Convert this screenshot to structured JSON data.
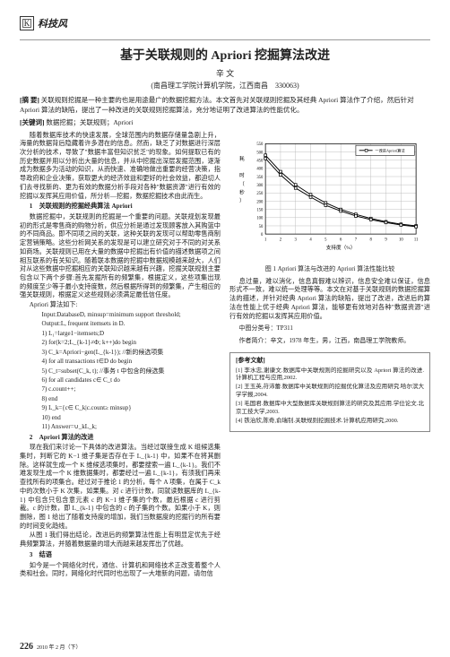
{
  "header": {
    "section": "科技风"
  },
  "title": "基于关联规则的 Apriori 挖掘算法改进",
  "author": "辛 文",
  "affiliation": "(南昌理工学院计算机学院，江西南昌　330063)",
  "abstract": {
    "label": "[摘 要]",
    "text": "关联规则挖掘是一种主要的也是用途最广的数据挖掘方法。本文首先对关联规则挖掘及其经典 Apriori 算法作了介绍，然后针对 Apriori 算法的缺陷，提出了一种改进的关联规则挖掘算法，充分地证明了改进算法的性能优化。"
  },
  "keywords": {
    "label": "[关键词]",
    "text": "数据挖掘；关联规则；Apriori"
  },
  "left": {
    "p1": "随着数据库技术的快速发展，全球范围内的数据存储量急剧上升，海量的数据背后隐藏着许多潜在的信息。然而，缺乏了对数据进行深层次分析的技术，导致了\"数据丰富但知识贫乏\"的现象。如何提取已有的历史数据并用以分析出大量的信息，并从中挖掘出深层发掘范围，逐渐成为数据多为活动的知识，从而快速、准确地做出重要的经营决策，指导政府和企业决策，获取更大的经济效益和更好的社会效益，都迫切人们去寻找新的、更为有效的数据分析手段对各种\"数据资源\"进行有效的挖掘以发挥其应用价值，所分析—挖掘，数据挖掘技术由此而生。",
    "h1": "1　关联规则的挖掘经典算法 Apriori",
    "p2": "数据挖掘中，关联规则的挖掘是一个重要的问题。关联规划发现最初的形式是零售商的购物分析，供应分析是通过发现顾客放入其购篮中的不同商品。即不同项之间的关联，这种关联的发现可以帮助零售商制定营销策略。这些分析网关系的发现是可以建立研究对于不同的对关系如商场。关联规则已用在大量的数据中挖掘出有价值的描述数据项之间相互联系的有关知识。随着联本数据的挖掘中数据规模越来越大，人们对从这些数据中挖掘相应的关联知识越来越有兴趣，挖掘关联规划主要包含以下两个步骤:首先发掘所有的频繁集，根据定义，这些项集出现的频度至少等于最小支持度数，然后根据所得到的频繁集，产生相应的强关联规则，根据定义这些规则必须满足最低信任度。",
    "h2": "Apriori 算法如下:",
    "c1": "Input:DatabaseD, minsup=minimum support threshold;",
    "c2": "Output:L, frequent itemsets in D.",
    "c3": "1) L₁=large1−itemsets;D",
    "c4": "2) for(k=2;L_{k-1}≠Φ; k++)do begin",
    "c5": "3) C_k=Apriori−gen(L_{k-1}); //新的候选项集",
    "c6": "4) for all transactions t∈D do begin",
    "c7": "5) C_t=subset(C_k, t); //事务 t 中包含的候选集",
    "c8": "6) for all candidates c∈ C_t do",
    "c9": "7) c.count++;",
    "c10": "8) end",
    "c11": "9) L_k={c∈ C_k|c.count≥ minsup}",
    "c12": "10) end",
    "c13": "11) Answer=∪_kL_k;",
    "h3": "2　Apriori 算法的改进",
    "p3": "现在我们来讨论一下具体的改进算法。当经过联接生成 K 组候选集集时，判断它的 K−1 维子集是否存在于 L_{k-1} 中，如果不在将其删除。这样就生成一个 K 维候选项集时，都要搜索一遍 L_{k-1}。我们不难发现生成一个 K 维数据集时，都要经过一遍 L_{k-1}，有须我们再来查找所有的项集合。经过对于推论 1 的分析，每个 A 项集，在属于 C_k 中的次数小于 K 次集，如果集。对 c 进行计数，同就读数据库的 L_{k-1} 中包含只包含意元素 c 的 K−1 维子集的个数，最后根据 c 进行剪裁。c 的计数，即 L_{k-1} 中包含的 c 的子集的个数。如果小于 K，则删除，图 1 给出了随着支持度的增加，我们当数据度的挖掘行的所有要的时间变化趋线。",
    "p4": "从图 1 我们得出结论，改进后的频繁算法性能上有明显定优先于经典频繁算法，并随着数据量的增大而越来越发挥出了优越。",
    "h4": "3　结语",
    "p5": "如今是一个网络化时代，通信、计算机和网络技术正改变着整个人类和社会。同时，网络化时代同时也出现了一大堆新的问题，请勿信"
  },
  "right": {
    "chart": {
      "type": "line",
      "xlabel": "支持度（%）",
      "ylabel": "耗 时（秒）",
      "legend": [
        "一改进Apriori算法"
      ],
      "x_ticks": [
        1,
        2,
        3,
        4,
        5,
        6,
        7,
        8,
        9,
        10,
        11
      ],
      "ylim": [
        0,
        550
      ],
      "y_ticks": [
        0,
        50,
        100,
        150,
        200,
        250,
        300,
        350,
        400,
        450,
        500,
        550
      ],
      "series": [
        {
          "name": "line1",
          "color": "#000000",
          "marker": "square",
          "values": [
            480,
            380,
            300,
            240,
            190,
            150,
            120,
            95,
            75,
            60,
            50
          ]
        },
        {
          "name": "line2",
          "color": "#000000",
          "marker": "square",
          "values": [
            460,
            360,
            280,
            225,
            175,
            140,
            110,
            88,
            70,
            55,
            45
          ]
        }
      ],
      "grid_color": "#bbbbbb",
      "background_color": "#ffffff",
      "label_fontsize": 7
    },
    "chart_caption": "图 1 Apriori 算法与改进的 Apriori 算法性能比较",
    "p1": "息过量，难以消化，信息真假难以辨识，信息安全难以保证，信息形式不一致，难以统一处理等等。本文在对基于关联规则的数据挖掘算法的描述，并针对经典 Apriori 算法的缺陷，提出了改进，改进后的算法在性能上优于经典 Apriori 算法，能够更有效地对各种\"数据资源\"进行有效的挖掘以发挥其应用价值。"
  },
  "meta": {
    "clc": "中图分类号：TP311",
    "author_bio": "作者简介：辛文，1978 年生，男，江西，南昌理工学院教师。"
  },
  "refs": {
    "title": "[参考文献]",
    "items": [
      "[1] 李水忠,谢康文.数据库中关联规则的挖掘研究以及 Apriori 算法的改进.计算机工程与应用,2002.",
      "[2] 王玉英,苻沛蕾.数据库中关联规则的挖掘优化算法及应用研究.哈尔滨大学学报,2004.",
      "[3] 毛国君.数据库中大型数据库关联规则算法的研究及其应用.学位论文.北京工技大学,2003.",
      "[4] 铁治欣,陈奇,俞瑞钊.关联规则挖掘技术.计算机应用研究,2000."
    ]
  },
  "footer": {
    "page": "226",
    "date": "2010 年 2 月（下）"
  }
}
